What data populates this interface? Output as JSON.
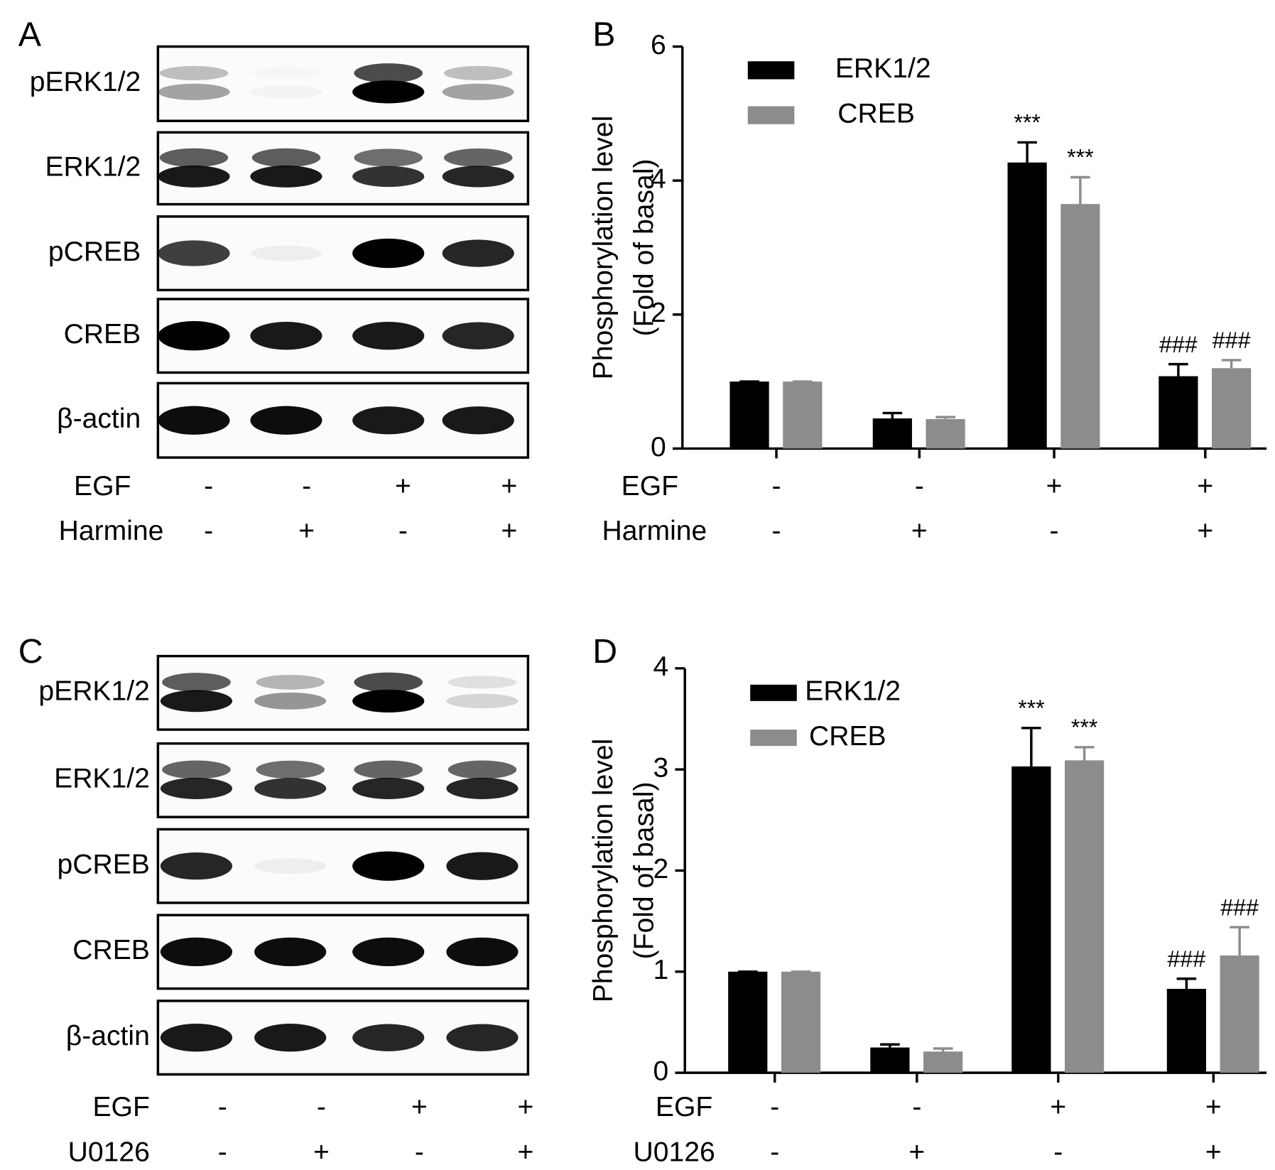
{
  "blots": [
    {
      "panel_label": "A",
      "rows": [
        "pERK1/2",
        "ERK1/2",
        "pCREB",
        "CREB",
        "β-actin"
      ],
      "treatments": [
        {
          "name": "EGF",
          "signs": [
            "-",
            "-",
            "+",
            "+"
          ]
        },
        {
          "name": "Harmine",
          "signs": [
            "-",
            "+",
            "-",
            "+"
          ]
        }
      ]
    },
    {
      "panel_label": "C",
      "rows": [
        "pERK1/2",
        "ERK1/2",
        "pCREB",
        "CREB",
        "β-actin"
      ],
      "treatments": [
        {
          "name": "EGF",
          "signs": [
            "-",
            "-",
            "+",
            "+"
          ]
        },
        {
          "name": "U0126",
          "signs": [
            "-",
            "+",
            "-",
            "+"
          ]
        }
      ]
    }
  ],
  "chart_data": [
    {
      "type": "bar",
      "panel_label": "B",
      "ylabel": [
        "Phosphorylation level",
        "(Fold of basal)"
      ],
      "ylim": [
        0,
        6
      ],
      "yticks": [
        0,
        2,
        4,
        6
      ],
      "treatments": [
        {
          "name": "EGF",
          "signs": [
            "-",
            "-",
            "+",
            "+"
          ]
        },
        {
          "name": "Harmine",
          "signs": [
            "-",
            "+",
            "-",
            "+"
          ]
        }
      ],
      "series": [
        {
          "name": "ERK1/2",
          "color": "#000000",
          "values": [
            1,
            0.45,
            4.27,
            1.08
          ],
          "errors": [
            0,
            0.08,
            0.3,
            0.18
          ],
          "annotations": [
            null,
            null,
            "***",
            "###"
          ]
        },
        {
          "name": "CREB",
          "color": "#8c8c8c",
          "values": [
            1,
            0.44,
            3.65,
            1.2
          ],
          "errors": [
            0,
            0.03,
            0.4,
            0.12
          ],
          "annotations": [
            null,
            null,
            "***",
            "###"
          ]
        }
      ]
    },
    {
      "type": "bar",
      "panel_label": "D",
      "ylabel": [
        "Phosphorylation level",
        "(Fold of basal)"
      ],
      "ylim": [
        0,
        4
      ],
      "yticks": [
        0,
        1,
        2,
        3,
        4
      ],
      "treatments": [
        {
          "name": "EGF",
          "signs": [
            "-",
            "-",
            "+",
            "+"
          ]
        },
        {
          "name": "U0126",
          "signs": [
            "-",
            "+",
            "-",
            "+"
          ]
        }
      ],
      "series": [
        {
          "name": "ERK1/2",
          "color": "#000000",
          "values": [
            1,
            0.25,
            3.03,
            0.83
          ],
          "errors": [
            0,
            0.03,
            0.38,
            0.1
          ],
          "annotations": [
            null,
            null,
            "***",
            "###"
          ]
        },
        {
          "name": "CREB",
          "color": "#8c8c8c",
          "values": [
            1,
            0.21,
            3.09,
            1.16
          ],
          "errors": [
            0,
            0.03,
            0.13,
            0.28
          ],
          "annotations": [
            null,
            null,
            "***",
            "###"
          ]
        }
      ]
    }
  ]
}
